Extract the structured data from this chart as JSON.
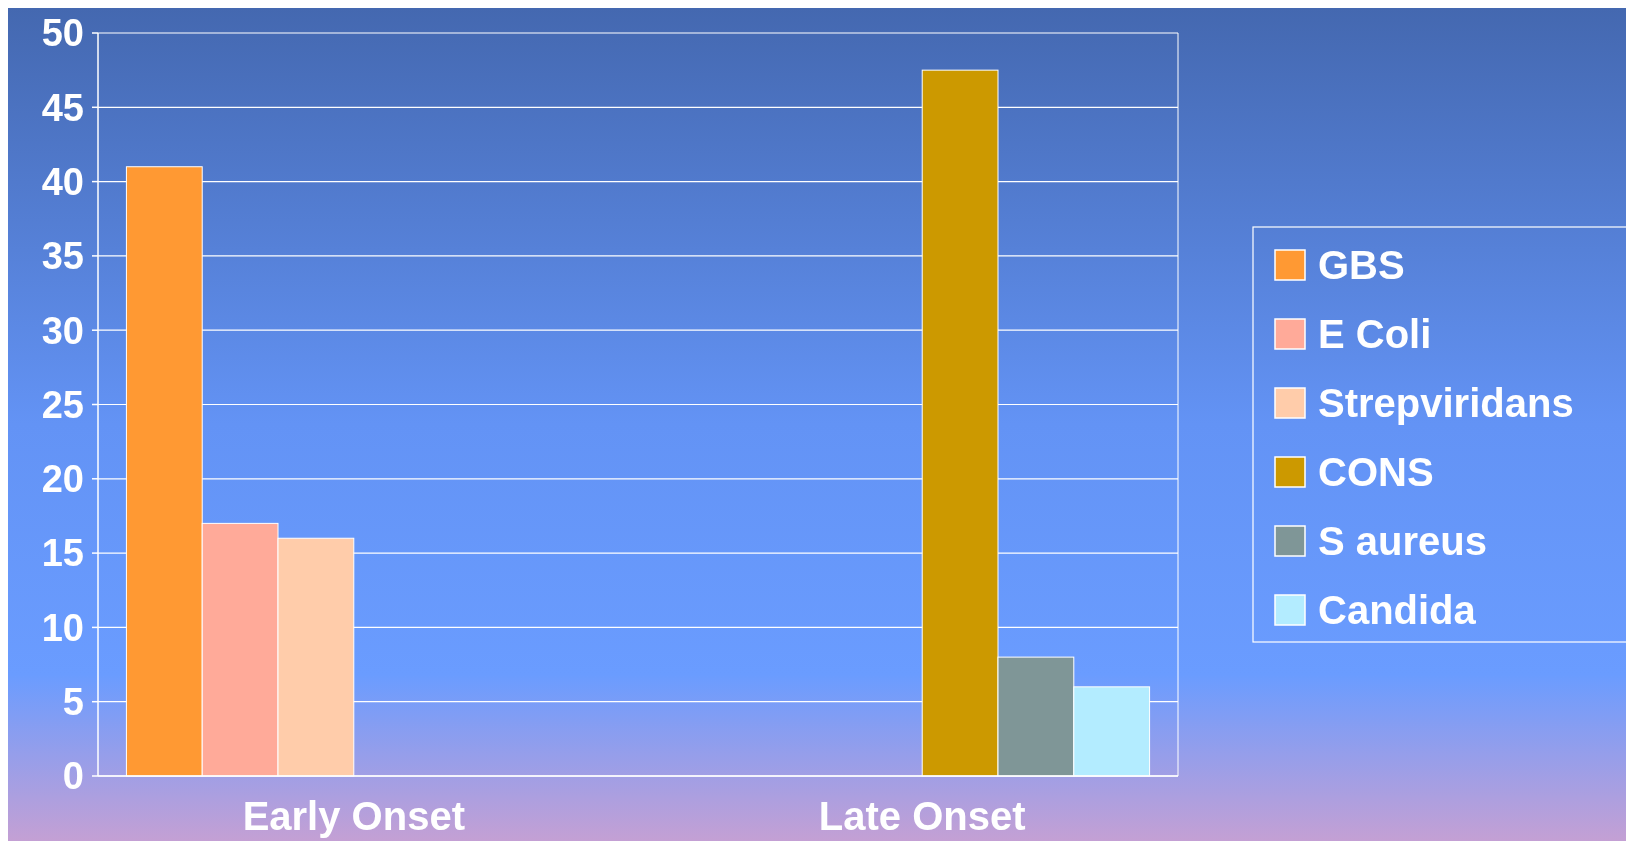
{
  "chart_data": {
    "type": "bar",
    "categories": [
      "Early Onset",
      "Late Onset"
    ],
    "series": [
      {
        "name": "GBS",
        "color": "#ff9933",
        "values": [
          41,
          null
        ]
      },
      {
        "name": "E Coli",
        "color": "#ffaa99",
        "values": [
          17,
          null
        ]
      },
      {
        "name": "Strepviridans",
        "color": "#ffccaa",
        "values": [
          16,
          null
        ]
      },
      {
        "name": "CONS",
        "color": "#cc9900",
        "values": [
          null,
          47.5
        ]
      },
      {
        "name": "S aureus",
        "color": "#7f9697",
        "values": [
          null,
          8
        ]
      },
      {
        "name": "Candida",
        "color": "#b3ecff",
        "values": [
          null,
          6
        ]
      }
    ],
    "ylim": [
      0,
      50
    ],
    "yticks": [
      0,
      5,
      10,
      15,
      20,
      25,
      30,
      35,
      40,
      45,
      50
    ],
    "grid": "y",
    "legend": "right"
  }
}
